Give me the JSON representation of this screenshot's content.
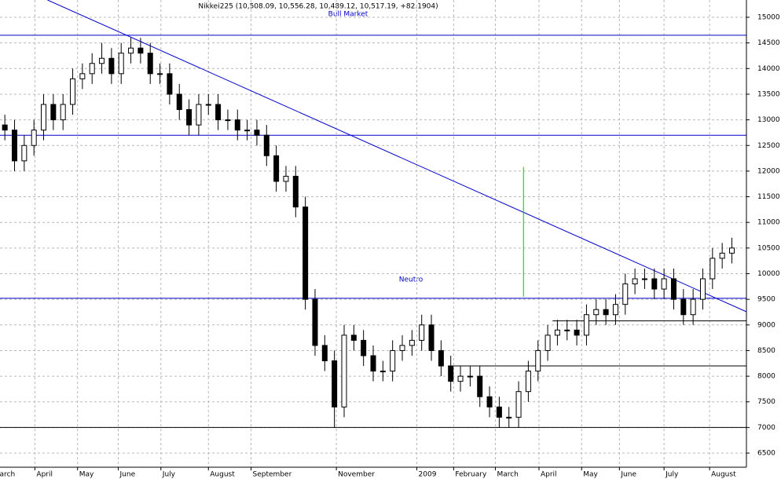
{
  "chart_data": {
    "type": "candlestick",
    "title": "Nikkei225 (10,508.09, 10,556.28, 10,489.12, 10,517.19, +82.1904)",
    "annotations": [
      "Bull Market",
      "Neutro"
    ],
    "xlim": [
      -0.5,
      76.5
    ],
    "ylim": [
      6225,
      15337
    ],
    "grid": true,
    "up_color": "#ffffff",
    "down_color": "#000000",
    "yticks": [
      6500,
      7000,
      7500,
      8000,
      8500,
      9000,
      9500,
      10000,
      10500,
      11000,
      11500,
      12000,
      12500,
      13000,
      13500,
      14000,
      14500,
      15000
    ],
    "xticks": [
      {
        "value": -0.7,
        "label": "arch"
      },
      {
        "value": 3.1,
        "label": "April"
      },
      {
        "value": 7.5,
        "label": "May"
      },
      {
        "value": 11.7,
        "label": "June"
      },
      {
        "value": 16.1,
        "label": "July"
      },
      {
        "value": 21.0,
        "label": "August"
      },
      {
        "value": 25.4,
        "label": "September"
      },
      {
        "value": 34.2,
        "label": "November"
      },
      {
        "value": 42.5,
        "label": "2009"
      },
      {
        "value": 46.3,
        "label": "February"
      },
      {
        "value": 50.6,
        "label": "March"
      },
      {
        "value": 55.1,
        "label": "April"
      },
      {
        "value": 59.5,
        "label": "May"
      },
      {
        "value": 63.4,
        "label": "June"
      },
      {
        "value": 68.0,
        "label": "July"
      },
      {
        "value": 72.7,
        "label": "August"
      }
    ],
    "series": [
      {
        "open": [
          12900,
          12800,
          12200,
          12500,
          12800,
          13300,
          13000,
          13300,
          13800,
          13900,
          14100,
          14200,
          13900,
          14300,
          14400,
          14300,
          13900,
          13900,
          13500,
          13200,
          12900,
          13300,
          13300,
          13000,
          13000,
          12800,
          12800,
          12700,
          12300,
          11800,
          11900,
          11300,
          9500,
          8600,
          8300,
          7400,
          8800,
          8700,
          8400,
          8100,
          8100,
          8500,
          8600,
          8700,
          9000,
          8500,
          8200,
          7900,
          8000,
          8000,
          7600,
          7400,
          7200,
          7200,
          7700,
          8100,
          8500,
          8800,
          8900,
          8900,
          8800,
          9200,
          9300,
          9200,
          9400,
          9800,
          9900,
          9900,
          9700,
          9900,
          9500,
          9200,
          9500,
          9900,
          10300,
          10400
        ],
        "high": [
          13100,
          13000,
          12700,
          13000,
          13500,
          13500,
          13500,
          14000,
          14100,
          14300,
          14500,
          14400,
          14500,
          14600,
          14600,
          14500,
          14100,
          14100,
          13700,
          13400,
          13500,
          13500,
          13500,
          13200,
          13200,
          13000,
          13000,
          12900,
          12500,
          12100,
          12100,
          11500,
          9700,
          8800,
          8500,
          9000,
          9000,
          8900,
          8600,
          8300,
          8700,
          8800,
          8900,
          9200,
          9200,
          8700,
          8400,
          8200,
          8200,
          8200,
          7800,
          7600,
          7400,
          7900,
          8300,
          8700,
          9000,
          9100,
          9100,
          9100,
          9400,
          9500,
          9500,
          9600,
          10000,
          10100,
          10100,
          10100,
          10100,
          10100,
          9700,
          9700,
          10100,
          10500,
          10600,
          10700
        ],
        "low": [
          12600,
          12000,
          12000,
          12300,
          12600,
          12800,
          12800,
          13100,
          13600,
          13700,
          13900,
          13700,
          13700,
          14100,
          14100,
          13700,
          13700,
          13300,
          13000,
          12700,
          12700,
          13100,
          12800,
          12800,
          12600,
          12600,
          12500,
          12100,
          11600,
          11600,
          11100,
          9300,
          8400,
          8100,
          7000,
          7200,
          8500,
          8200,
          7900,
          7900,
          7900,
          8300,
          8400,
          8500,
          8300,
          8000,
          7700,
          7700,
          7800,
          7400,
          7200,
          7000,
          7000,
          7000,
          7500,
          7900,
          8300,
          8600,
          8700,
          8600,
          8600,
          9000,
          9000,
          9000,
          9200,
          9600,
          9700,
          9500,
          9500,
          9300,
          9000,
          9000,
          9300,
          9700,
          10100,
          10200
        ],
        "close": [
          12800,
          12200,
          12500,
          12800,
          13300,
          13000,
          13300,
          13800,
          13900,
          14100,
          14200,
          13900,
          14300,
          14400,
          14300,
          13900,
          13900,
          13500,
          13200,
          12900,
          13300,
          13300,
          13000,
          13000,
          12800,
          12800,
          12700,
          12300,
          11800,
          11900,
          11300,
          9500,
          8600,
          8300,
          7400,
          8800,
          8700,
          8400,
          8100,
          8100,
          8500,
          8600,
          8700,
          9000,
          8500,
          8200,
          7900,
          8000,
          8000,
          7600,
          7400,
          7200,
          7200,
          7700,
          8100,
          8500,
          8800,
          8900,
          8900,
          8800,
          9200,
          9300,
          9200,
          9400,
          9800,
          9900,
          9900,
          9700,
          9900,
          9500,
          9200,
          9500,
          9900,
          10300,
          10400,
          10500
        ]
      }
    ],
    "lines": [
      {
        "x": [
          -0.5,
          76.5
        ],
        "y": [
          14650,
          14650
        ],
        "color": "#0000cc"
      },
      {
        "x": [
          -0.5,
          76.5
        ],
        "y": [
          12700,
          12700
        ],
        "color": "#0000cc"
      },
      {
        "x": [
          -0.5,
          76.5
        ],
        "y": [
          9520,
          9520
        ],
        "color": "#0000cc"
      },
      {
        "x": [
          -0.5,
          76.5
        ],
        "y": [
          7000,
          7000
        ],
        "color": "#000000"
      },
      {
        "x": [
          56.5,
          76.5
        ],
        "y": [
          9080,
          9080
        ],
        "color": "#000000"
      },
      {
        "x": [
          45.7,
          76.5
        ],
        "y": [
          8200,
          8200
        ],
        "color": "#000000"
      },
      {
        "x": [
          4.4,
          76.5
        ],
        "y": [
          15337,
          9257
        ],
        "color": "#0000cc"
      },
      {
        "x": [
          53.5,
          53.5
        ],
        "y": [
          12080,
          9550
        ],
        "color": "#00cc00"
      }
    ]
  }
}
